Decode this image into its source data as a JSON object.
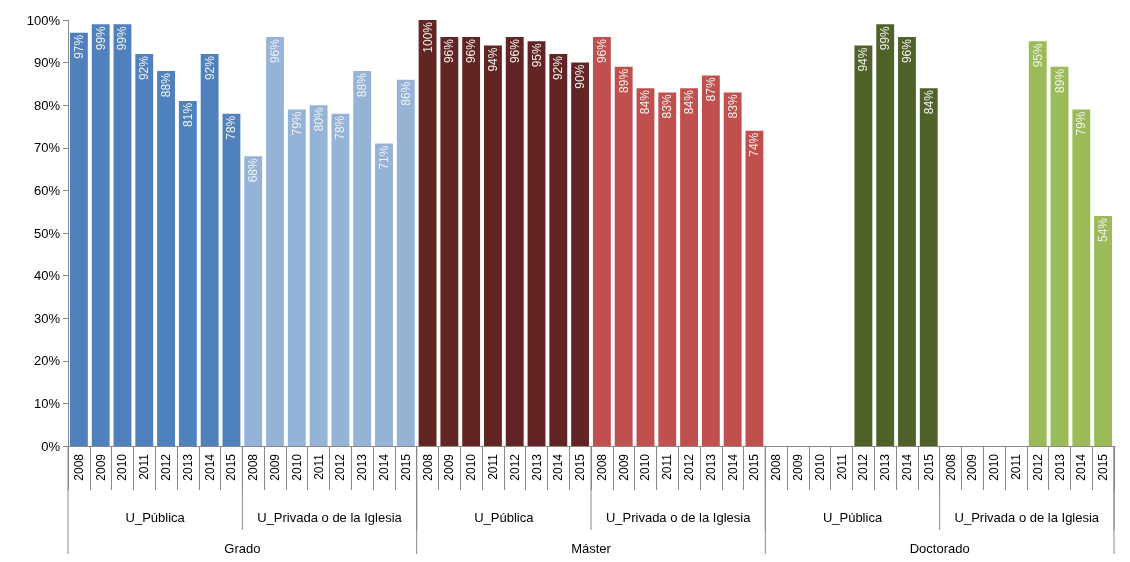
{
  "chart_data": {
    "type": "bar",
    "categories": [
      "2008",
      "2009",
      "2010",
      "2011",
      "2012",
      "2013",
      "2014",
      "2015",
      "2008",
      "2009",
      "2010",
      "2011",
      "2012",
      "2013",
      "2014",
      "2015",
      "2008",
      "2009",
      "2010",
      "2011",
      "2012",
      "2013",
      "2014",
      "2015",
      "2008",
      "2009",
      "2010",
      "2011",
      "2012",
      "2013",
      "2014",
      "2015",
      "2008",
      "2009",
      "2010",
      "2011",
      "2012",
      "2013",
      "2014",
      "2015",
      "2008",
      "2009",
      "2010",
      "2011",
      "2012",
      "2013",
      "2014",
      "2015"
    ],
    "series": [
      {
        "color": "#4f81bd",
        "values": [
          97,
          99,
          99,
          92,
          88,
          81,
          92,
          78,
          null,
          null,
          null,
          null,
          null,
          null,
          null,
          null,
          null,
          null,
          null,
          null,
          null,
          null,
          null,
          null,
          null,
          null,
          null,
          null,
          null,
          null,
          null,
          null,
          null,
          null,
          null,
          null,
          null,
          null,
          null,
          null,
          null,
          null,
          null,
          null,
          null,
          null,
          null,
          null
        ],
        "value_labels": [
          "97%",
          "99%",
          "99%",
          "92%",
          "88%",
          "81%",
          "92%",
          "78%",
          null,
          null,
          null,
          null,
          null,
          null,
          null,
          null,
          null,
          null,
          null,
          null,
          null,
          null,
          null,
          null,
          null,
          null,
          null,
          null,
          null,
          null,
          null,
          null,
          null,
          null,
          null,
          null,
          null,
          null,
          null,
          null,
          null,
          null,
          null,
          null,
          null,
          null,
          null,
          null
        ]
      },
      {
        "color": "#95b3d7",
        "values": [
          null,
          null,
          null,
          null,
          null,
          null,
          null,
          null,
          68,
          96,
          79,
          80,
          78,
          88,
          71,
          86,
          null,
          null,
          null,
          null,
          null,
          null,
          null,
          null,
          null,
          null,
          null,
          null,
          null,
          null,
          null,
          null,
          null,
          null,
          null,
          null,
          null,
          null,
          null,
          null,
          null,
          null,
          null,
          null,
          null,
          null,
          null,
          null
        ],
        "value_labels": [
          null,
          null,
          null,
          null,
          null,
          null,
          null,
          null,
          "68%",
          "96%",
          "79%",
          "80%",
          "78%",
          "88%",
          "71%",
          "86%",
          null,
          null,
          null,
          null,
          null,
          null,
          null,
          null,
          null,
          null,
          null,
          null,
          null,
          null,
          null,
          null,
          null,
          null,
          null,
          null,
          null,
          null,
          null,
          null,
          null,
          null,
          null,
          null,
          null,
          null,
          null,
          null
        ]
      },
      {
        "color": "#632523",
        "values": [
          null,
          null,
          null,
          null,
          null,
          null,
          null,
          null,
          null,
          null,
          null,
          null,
          null,
          null,
          null,
          null,
          100,
          96,
          96,
          94,
          96,
          95,
          92,
          90,
          null,
          null,
          null,
          null,
          null,
          null,
          null,
          null,
          null,
          null,
          null,
          null,
          null,
          null,
          null,
          null,
          null,
          null,
          null,
          null,
          null,
          null,
          null,
          null
        ],
        "value_labels": [
          null,
          null,
          null,
          null,
          null,
          null,
          null,
          null,
          null,
          null,
          null,
          null,
          null,
          null,
          null,
          null,
          "100%",
          "96%",
          "96%",
          "94%",
          "96%",
          "95%",
          "92%",
          "90%",
          null,
          null,
          null,
          null,
          null,
          null,
          null,
          null,
          null,
          null,
          null,
          null,
          null,
          null,
          null,
          null,
          null,
          null,
          null,
          null,
          null,
          null,
          null,
          null
        ]
      },
      {
        "color": "#c0504d",
        "values": [
          null,
          null,
          null,
          null,
          null,
          null,
          null,
          null,
          null,
          null,
          null,
          null,
          null,
          null,
          null,
          null,
          null,
          null,
          null,
          null,
          null,
          null,
          null,
          null,
          96,
          89,
          84,
          83,
          84,
          87,
          83,
          74,
          null,
          null,
          null,
          null,
          null,
          null,
          null,
          null,
          null,
          null,
          null,
          null,
          null,
          null,
          null,
          null
        ],
        "value_labels": [
          null,
          null,
          null,
          null,
          null,
          null,
          null,
          null,
          null,
          null,
          null,
          null,
          null,
          null,
          null,
          null,
          null,
          null,
          null,
          null,
          null,
          null,
          null,
          null,
          "96%",
          "89%",
          "84%",
          "83%",
          "84%",
          "87%",
          "83%",
          "74%",
          null,
          null,
          null,
          null,
          null,
          null,
          null,
          null,
          null,
          null,
          null,
          null,
          null,
          null,
          null,
          null
        ]
      },
      {
        "color": "#4f6228",
        "values": [
          null,
          null,
          null,
          null,
          null,
          null,
          null,
          null,
          null,
          null,
          null,
          null,
          null,
          null,
          null,
          null,
          null,
          null,
          null,
          null,
          null,
          null,
          null,
          null,
          null,
          null,
          null,
          null,
          null,
          null,
          null,
          null,
          null,
          null,
          null,
          null,
          94,
          99,
          96,
          84,
          null,
          null,
          null,
          null,
          null,
          null,
          null,
          null
        ],
        "value_labels": [
          null,
          null,
          null,
          null,
          null,
          null,
          null,
          null,
          null,
          null,
          null,
          null,
          null,
          null,
          null,
          null,
          null,
          null,
          null,
          null,
          null,
          null,
          null,
          null,
          null,
          null,
          null,
          null,
          null,
          null,
          null,
          null,
          null,
          null,
          null,
          null,
          "94%",
          "99%",
          "96%",
          "84%",
          null,
          null,
          null,
          null,
          null,
          null,
          null,
          null
        ]
      },
      {
        "color": "#9bbb59",
        "values": [
          null,
          null,
          null,
          null,
          null,
          null,
          null,
          null,
          null,
          null,
          null,
          null,
          null,
          null,
          null,
          null,
          null,
          null,
          null,
          null,
          null,
          null,
          null,
          null,
          null,
          null,
          null,
          null,
          null,
          null,
          null,
          null,
          null,
          null,
          null,
          null,
          null,
          null,
          null,
          null,
          null,
          null,
          null,
          null,
          95,
          89,
          79,
          54
        ],
        "value_labels": [
          null,
          null,
          null,
          null,
          null,
          null,
          null,
          null,
          null,
          null,
          null,
          null,
          null,
          null,
          null,
          null,
          null,
          null,
          null,
          null,
          null,
          null,
          null,
          null,
          null,
          null,
          null,
          null,
          null,
          null,
          null,
          null,
          null,
          null,
          null,
          null,
          null,
          null,
          null,
          null,
          null,
          null,
          null,
          null,
          "95%",
          "89%",
          "79%",
          "54%"
        ]
      }
    ],
    "annotations": [
      "U_Pública",
      "U_Privada o de la Iglesia",
      "U_Pública",
      "U_Privada o de la Iglesia",
      "U_Pública",
      "U_Privada o de la Iglesia",
      "Grado",
      "Máster",
      "Doctorado"
    ],
    "ylim": [
      0,
      100
    ],
    "yticks": [
      {
        "value": 0,
        "label": "0%"
      },
      {
        "value": 10,
        "label": "10%"
      },
      {
        "value": 20,
        "label": "20%"
      },
      {
        "value": 30,
        "label": "30%"
      },
      {
        "value": 40,
        "label": "40%"
      },
      {
        "value": 50,
        "label": "50%"
      },
      {
        "value": 60,
        "label": "60%"
      },
      {
        "value": 70,
        "label": "70%"
      },
      {
        "value": 80,
        "label": "80%"
      },
      {
        "value": 90,
        "label": "90%"
      },
      {
        "value": 100,
        "label": "100%"
      }
    ],
    "grid": false
  }
}
